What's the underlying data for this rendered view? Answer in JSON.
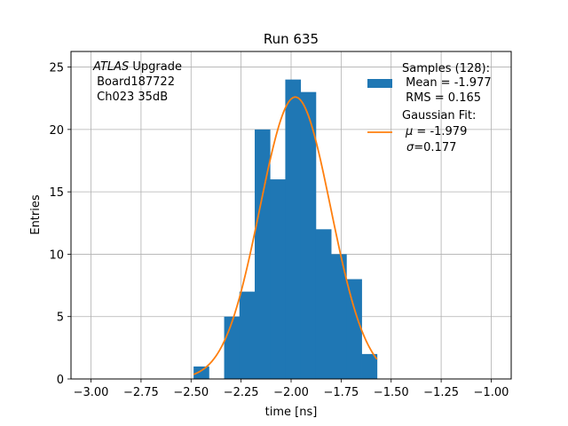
{
  "chart_data": {
    "type": "bar",
    "title": "Run 635",
    "xlabel": "time [ns]",
    "ylabel": "Entries",
    "xlim": [
      -3.0,
      -1.0
    ],
    "ylim": [
      0,
      25
    ],
    "x_ticks": [
      -3.0,
      -2.75,
      -2.5,
      -2.25,
      -2.0,
      -1.75,
      -1.5,
      -1.25,
      -1.0
    ],
    "x_tick_labels": [
      "−3.00",
      "−2.75",
      "−2.50",
      "−2.25",
      "−2.00",
      "−1.75",
      "−1.50",
      "−1.25",
      "−1.00"
    ],
    "y_ticks": [
      0,
      5,
      10,
      15,
      20,
      25
    ],
    "y_tick_labels": [
      "0",
      "5",
      "10",
      "15",
      "20",
      "25"
    ],
    "grid": true,
    "annotation": {
      "italic": "ATLAS",
      "line1_rest": " Upgrade",
      "line2": " Board187722",
      "line3": " Ch023 35dB"
    },
    "histogram": {
      "name": "Samples (128):",
      "color": "#1f77b4",
      "bin_edges": [
        -2.4873,
        -2.4109,
        -2.3346,
        -2.2582,
        -2.1818,
        -2.1055,
        -2.0291,
        -1.9527,
        -1.8764,
        -1.8,
        -1.7236,
        -1.6473,
        -1.5709
      ],
      "counts": [
        1,
        0,
        5,
        7,
        20,
        16,
        24,
        23,
        12,
        10,
        8,
        2
      ]
    },
    "fit": {
      "name": "Gaussian Fit:",
      "color": "#ff7f0e",
      "mu": -1.979,
      "sigma": 0.177,
      "amplitude": 22.6,
      "x_range": [
        -2.4873,
        -1.5709
      ]
    },
    "legend": {
      "placement": "top-right",
      "samples_lines": [
        "Samples (128):",
        " Mean = -1.977",
        " RMS = 0.165"
      ],
      "fit_line1": "Gaussian Fit:",
      "fit_mu_symbol": "μ",
      "fit_mu_rest": " = -1.979",
      "fit_sigma_symbol": "σ",
      "fit_sigma_rest": "=0.177"
    }
  }
}
